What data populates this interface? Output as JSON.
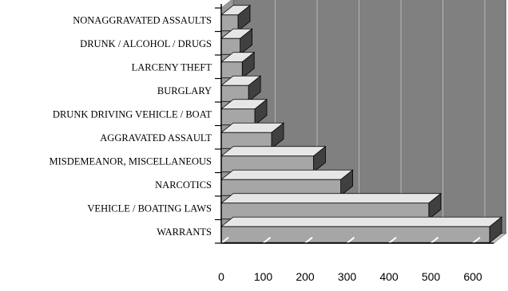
{
  "chart_data": {
    "type": "bar",
    "orientation": "horizontal",
    "style": "3d",
    "categories": [
      "NONAGGRAVATED ASSAULTS",
      "DRUNK / ALCOHOL / DRUGS",
      "LARCENY THEFT",
      "BURGLARY",
      "DRUNK DRIVING VEHICLE / BOAT",
      "AGGRAVATED ASSAULT",
      "MISDEMEANOR, MISCELLANEOUS",
      "NARCOTICS",
      "VEHICLE / BOATING LAWS",
      "WARRANTS"
    ],
    "values": [
      40,
      45,
      50,
      65,
      80,
      120,
      220,
      285,
      495,
      640
    ],
    "title": "",
    "xlabel": "",
    "ylabel": "",
    "xlim": [
      0,
      650
    ],
    "xticks": [
      0,
      100,
      200,
      300,
      400,
      500,
      600
    ],
    "grid": true,
    "legend": "none",
    "colors": {
      "wall": "#808080",
      "floor": "#bfbfbf",
      "gridline": "#b8b8b8",
      "bar_front": "#a6a6a6",
      "bar_top": "#e6e6e6",
      "bar_side": "#404040",
      "axis": "#000000"
    }
  }
}
